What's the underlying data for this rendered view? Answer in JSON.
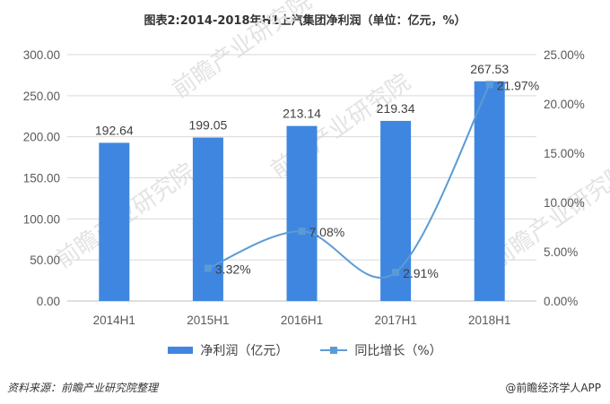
{
  "title": "图表2:2014-2018年H1上汽集团净利润（单位：亿元，%）",
  "watermark": "前瞻产业研究院",
  "legend": {
    "bar_label": "净利润（亿元）",
    "line_label": "同比增长（%）"
  },
  "source_text": "资料来源：前瞻产业研究院整理",
  "brand_text": "@前瞻经济学人APP",
  "colors": {
    "bar": "#3f86e0",
    "line": "#5b9bd5"
  },
  "chart_data": {
    "type": "bar",
    "categories": [
      "2014H1",
      "2015H1",
      "2016H1",
      "2017H1",
      "2018H1"
    ],
    "series": [
      {
        "name": "净利润（亿元）",
        "type": "bar",
        "axis": "left",
        "values": [
          192.64,
          199.05,
          213.14,
          219.34,
          267.53
        ]
      },
      {
        "name": "同比增长（%）",
        "type": "line",
        "axis": "right",
        "values": [
          null,
          3.32,
          7.08,
          2.91,
          21.97
        ]
      }
    ],
    "bar_labels": [
      "192.64",
      "199.05",
      "213.14",
      "219.34",
      "267.53"
    ],
    "line_labels": [
      null,
      "3.32%",
      "7.08%",
      "2.91%",
      "21.97%"
    ],
    "left_axis": {
      "min": 0,
      "max": 300,
      "ticks": [
        "0.00",
        "50.00",
        "100.00",
        "150.00",
        "200.00",
        "250.00",
        "300.00"
      ]
    },
    "right_axis": {
      "min": 0,
      "max": 25,
      "ticks": [
        "0.00%",
        "5.00%",
        "10.00%",
        "15.00%",
        "20.00%",
        "25.00%"
      ]
    },
    "grid": true,
    "legend_position": "bottom"
  }
}
